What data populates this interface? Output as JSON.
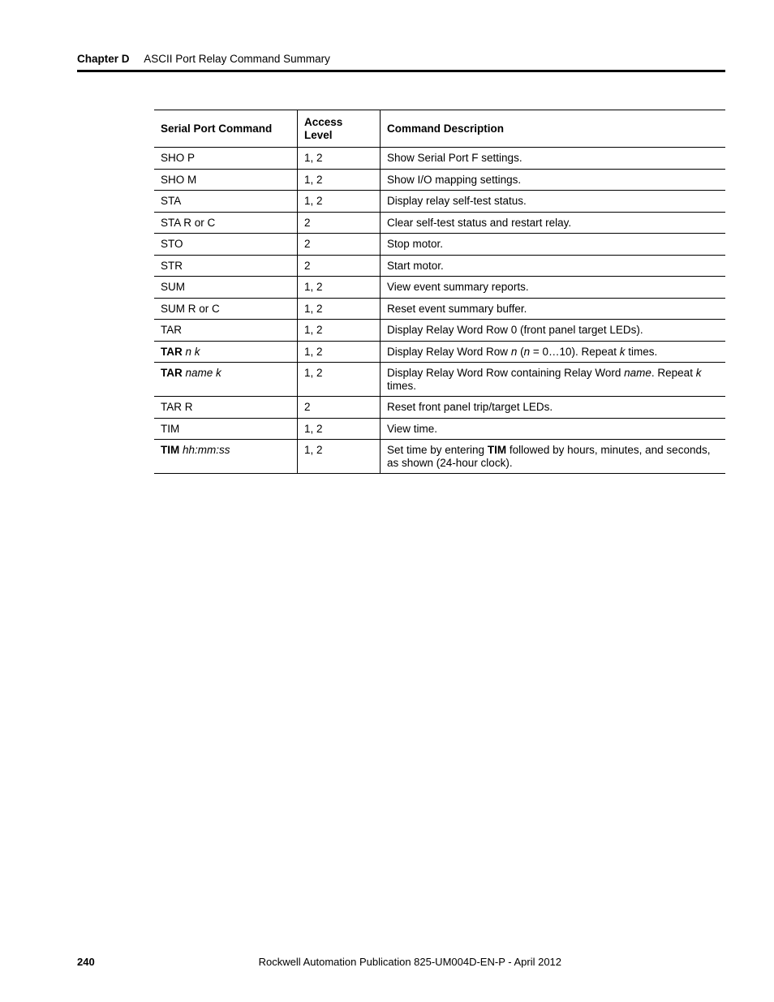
{
  "header": {
    "chapter_label": "Chapter D",
    "chapter_title": "ASCII Port Relay Command Summary"
  },
  "table": {
    "columns": {
      "cmd": "Serial Port Command",
      "acc": "Access Level",
      "desc": "Command Description"
    },
    "rows": [
      {
        "cmd_plain": "SHO P",
        "acc": "1, 2",
        "desc_plain": "Show Serial Port F settings."
      },
      {
        "cmd_plain": "SHO M",
        "acc": "1, 2",
        "desc_plain": "Show I/O mapping settings."
      },
      {
        "cmd_plain": "STA",
        "acc": "1, 2",
        "desc_plain": "Display relay self-test status."
      },
      {
        "cmd_plain": "STA R or C",
        "acc": "2",
        "desc_plain": "Clear self-test status and restart relay."
      },
      {
        "cmd_plain": "STO",
        "acc": "2",
        "desc_plain": "Stop motor."
      },
      {
        "cmd_plain": "STR",
        "acc": "2",
        "desc_plain": "Start motor."
      },
      {
        "cmd_plain": "SUM",
        "acc": "1, 2",
        "desc_plain": "View event summary reports."
      },
      {
        "cmd_plain": "SUM R or C",
        "acc": "1, 2",
        "desc_plain": "Reset event summary buffer."
      },
      {
        "cmd_plain": "TAR",
        "acc": "1, 2",
        "desc_plain": "Display Relay Word Row 0 (front panel target LEDs)."
      },
      {
        "cmd_bold": "TAR",
        "cmd_ital": " n k",
        "acc": "1, 2",
        "desc_pre": "Display Relay Word Row ",
        "desc_i1": "n",
        "desc_mid1": " (",
        "desc_i2": "n",
        "desc_mid2": " = 0…10). Repeat ",
        "desc_i3": "k",
        "desc_post": " times."
      },
      {
        "cmd_bold": "TAR",
        "cmd_ital": " name k",
        "acc": "1, 2",
        "desc_pre": "Display Relay Word Row containing Relay Word ",
        "desc_i1": "name",
        "desc_mid1": ". Repeat ",
        "desc_i2": "k",
        "desc_post": " times."
      },
      {
        "cmd_plain": "TAR R",
        "acc": "2",
        "desc_plain": "Reset front panel trip/target LEDs."
      },
      {
        "cmd_plain": "TIM",
        "acc": "1, 2",
        "desc_plain": "View time."
      },
      {
        "cmd_bold": "TIM",
        "cmd_ital": " hh:mm:ss",
        "acc": "1, 2",
        "desc_pre": "Set time by entering ",
        "desc_b1": "TIM",
        "desc_post": " followed by hours, minutes, and seconds, as shown (24-hour clock)."
      }
    ]
  },
  "footer": {
    "page_number": "240",
    "publication": "Rockwell Automation Publication 825-UM004D-EN-P - April 2012"
  }
}
